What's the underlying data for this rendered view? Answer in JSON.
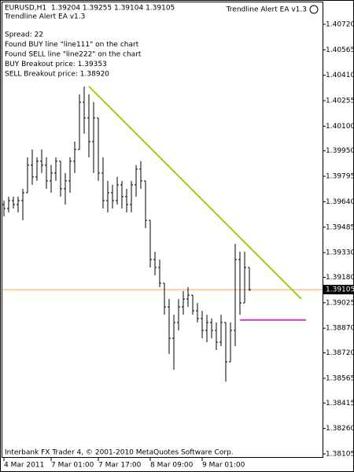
{
  "chart_data": {
    "type": "ohlc",
    "title": "EURUSD,H1  1.39204 1.39255 1.39104 1.39105",
    "expert": "Trendline Alert EA v1.3",
    "annotations": [
      "Spread: 22",
      "Found BUY line \"line111\" on the chart",
      "Found SELL line \"line222\" on the chart",
      "BUY Breakout price: 1.39353",
      "SELL Breakout price: 1.38920"
    ],
    "footer": "Interbank FX Trader 4, © 2001-2010 MetaQuotes Software Corp.",
    "color": "#000000",
    "categories": [
      "4 Mar 2011",
      null,
      null,
      null,
      null,
      null,
      null,
      null,
      null,
      null,
      "7 Mar 01:00",
      null,
      null,
      null,
      null,
      null,
      null,
      null,
      null,
      null,
      "7 Mar 17:00",
      null,
      null,
      null,
      null,
      null,
      null,
      null,
      null,
      null,
      null,
      "8 Mar 09:00",
      null,
      null,
      null,
      null,
      null,
      null,
      null,
      null,
      null,
      null,
      "9 Mar 01:00",
      null,
      null,
      null,
      null,
      null,
      null,
      null,
      null,
      null,
      null
    ],
    "values": [
      [
        1.39623,
        1.39647,
        1.39551,
        1.39599
      ],
      [
        1.39599,
        1.39671,
        1.39575,
        1.39647
      ],
      [
        1.39647,
        1.39671,
        1.39599,
        1.39623
      ],
      [
        1.39623,
        1.39671,
        1.39575,
        1.39647
      ],
      [
        1.39647,
        1.39719,
        1.39527,
        1.39695
      ],
      [
        1.39695,
        1.3991,
        1.39695,
        1.39863
      ],
      [
        1.39863,
        1.39958,
        1.39743,
        1.39791
      ],
      [
        1.39791,
        1.3991,
        1.39767,
        1.39887
      ],
      [
        1.39887,
        1.39958,
        1.39815,
        1.39863
      ],
      [
        1.39863,
        1.3991,
        1.39719,
        1.39767
      ],
      [
        1.39767,
        1.39863,
        1.39695,
        1.39815
      ],
      [
        1.39815,
        1.3991,
        1.39767,
        1.39887
      ],
      [
        1.39887,
        1.39887,
        1.39671,
        1.39719
      ],
      [
        1.39719,
        1.39815,
        1.39623,
        1.39767
      ],
      [
        1.39767,
        1.3991,
        1.39695,
        1.39887
      ],
      [
        1.39887,
        1.40006,
        1.39815,
        1.39958
      ],
      [
        1.39958,
        1.40294,
        1.39958,
        1.40246
      ],
      [
        1.40246,
        1.40342,
        1.40054,
        1.4015
      ],
      [
        1.4015,
        1.40294,
        1.3991,
        1.40006
      ],
      [
        1.40006,
        1.40246,
        1.39815,
        1.4015
      ],
      [
        1.4015,
        1.4015,
        1.39767,
        1.39815
      ],
      [
        1.39815,
        1.3991,
        1.39599,
        1.39647
      ],
      [
        1.39647,
        1.39767,
        1.39575,
        1.39695
      ],
      [
        1.39695,
        1.39743,
        1.39599,
        1.39647
      ],
      [
        1.39647,
        1.39791,
        1.39623,
        1.39743
      ],
      [
        1.39743,
        1.39767,
        1.39599,
        1.39671
      ],
      [
        1.39671,
        1.39719,
        1.39575,
        1.39623
      ],
      [
        1.39623,
        1.39767,
        1.39575,
        1.39743
      ],
      [
        1.39743,
        1.39863,
        1.39671,
        1.39839
      ],
      [
        1.39839,
        1.39887,
        1.39719,
        1.39767
      ],
      [
        1.39767,
        1.39767,
        1.39479,
        1.39527
      ],
      [
        1.39527,
        1.39527,
        1.3924,
        1.39288
      ],
      [
        1.39288,
        1.39336,
        1.39192,
        1.3924
      ],
      [
        1.3924,
        1.39288,
        1.3912,
        1.39144
      ],
      [
        1.39144,
        1.39144,
        1.38952,
        1.39
      ],
      [
        1.39,
        1.39048,
        1.38713,
        1.38809
      ],
      [
        1.38809,
        1.38952,
        1.38617,
        1.38905
      ],
      [
        1.38905,
        1.39048,
        1.38857,
        1.39
      ],
      [
        1.39,
        1.39096,
        1.38952,
        1.39048
      ],
      [
        1.39048,
        1.3912,
        1.39,
        1.39072
      ],
      [
        1.39072,
        1.39072,
        1.38952,
        1.38976
      ],
      [
        1.38976,
        1.39024,
        1.38905,
        1.38929
      ],
      [
        1.38929,
        1.38976,
        1.38809,
        1.38857
      ],
      [
        1.38857,
        1.38952,
        1.38785,
        1.38905
      ],
      [
        1.38905,
        1.38929,
        1.38809,
        1.38857
      ],
      [
        1.38857,
        1.38905,
        1.38737,
        1.38785
      ],
      [
        1.38785,
        1.38952,
        1.38761,
        1.38905
      ],
      [
        1.38905,
        1.38905,
        1.38545,
        1.38665
      ],
      [
        1.38665,
        1.38905,
        1.38665,
        1.38857
      ],
      [
        1.38857,
        1.39384,
        1.38761,
        1.39288
      ],
      [
        1.39288,
        1.39336,
        1.38952,
        1.39024
      ],
      [
        1.39024,
        1.39336,
        1.39024,
        1.3924
      ],
      [
        1.3924,
        1.3924,
        1.39096,
        1.39105
      ]
    ],
    "bid": 1.39105,
    "bid_color": "#f4a460",
    "lines": [
      {
        "color": "#9acd32",
        "start": [
          18,
          1.40342
        ],
        "end": [
          63,
          1.39048
        ]
      },
      {
        "color": "#c040c0",
        "start": [
          50,
          1.3892
        ],
        "end": [
          64,
          1.3892
        ]
      }
    ],
    "ylim": [
      1.38081,
      1.40868
    ],
    "yticks": [
      {
        "value": 1.4072,
        "label": "1.40720"
      },
      {
        "value": 1.40565,
        "label": "1.40565"
      },
      {
        "value": 1.4041,
        "label": "1.40410"
      },
      {
        "value": 1.40255,
        "label": "1.40255"
      },
      {
        "value": 1.401,
        "label": "1.40100"
      },
      {
        "value": 1.3995,
        "label": "1.39950"
      },
      {
        "value": 1.39795,
        "label": "1.39795"
      },
      {
        "value": 1.3964,
        "label": "1.39640"
      },
      {
        "value": 1.39485,
        "label": "1.39485"
      },
      {
        "value": 1.3933,
        "label": "1.39330"
      },
      {
        "value": 1.3918,
        "label": "1.39180"
      },
      {
        "value": 1.39025,
        "label": "1.39025"
      },
      {
        "value": 1.3887,
        "label": "1.38870"
      },
      {
        "value": 1.3872,
        "label": "1.38720"
      },
      {
        "value": 1.38565,
        "label": "1.38565"
      },
      {
        "value": 1.38415,
        "label": "1.38415"
      },
      {
        "value": 1.3826,
        "label": "1.38260"
      },
      {
        "value": 1.38105,
        "label": "1.38105"
      }
    ]
  }
}
